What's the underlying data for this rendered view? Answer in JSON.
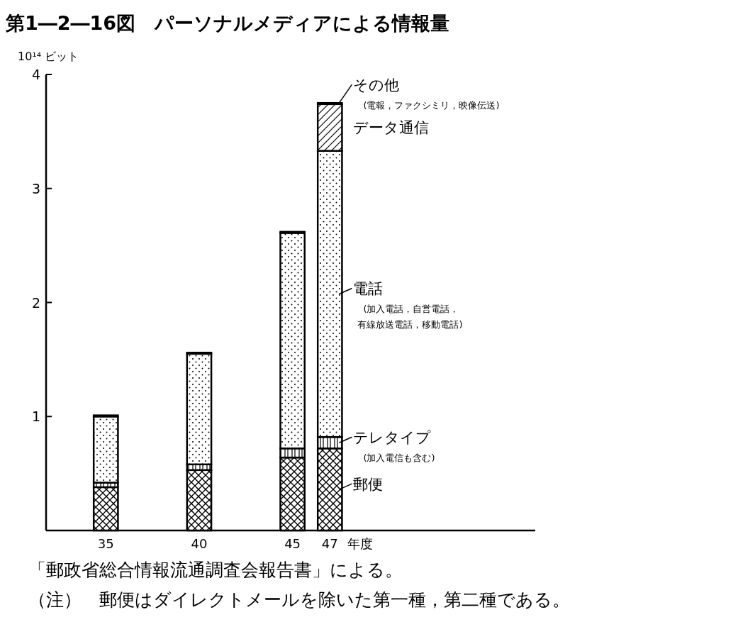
{
  "chart_data": {
    "type": "bar",
    "stacked": true,
    "title": "第1―2―16図　パーソナルメディアによる情報量",
    "ylabel": "10¹⁴ ビット",
    "xlabel": "年度",
    "x": [
      35,
      40,
      45,
      47
    ],
    "xlim": [
      31.8,
      58
    ],
    "xticks": [
      35,
      40,
      45,
      47
    ],
    "ylim": [
      0,
      4
    ],
    "yticks": [
      1,
      2,
      3,
      4
    ],
    "series": [
      {
        "name": "郵便",
        "color": "#000000",
        "values": [
          0.38,
          0.53,
          0.64,
          0.72
        ]
      },
      {
        "name": "テレタイプ\n(加入電信も含む)",
        "color": "#000000",
        "values": [
          0.04,
          0.05,
          0.08,
          0.1
        ]
      },
      {
        "name": "電話\n(加入電話，自営電話，有線放送電話，移動電話)",
        "color": "#000000",
        "values": [
          0.58,
          0.97,
          1.89,
          2.51
        ]
      },
      {
        "name": "データ通信",
        "color": "#000000",
        "values": [
          null,
          null,
          null,
          0.41
        ]
      },
      {
        "name": "その他\n(電報，ファクシミリ，映像伝送)",
        "color": "#000000",
        "values": [
          0.01,
          0.01,
          0.01,
          0.01
        ]
      }
    ],
    "annotations": [
      "「郵政省総合情報流通調査会報告書」による。",
      "（注）　郵便はダイレクトメールを除いた第一種，第二種である。"
    ]
  }
}
